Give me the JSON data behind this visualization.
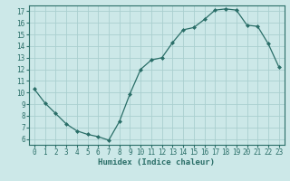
{
  "x": [
    0,
    1,
    2,
    3,
    4,
    5,
    6,
    7,
    8,
    9,
    10,
    11,
    12,
    13,
    14,
    15,
    16,
    17,
    18,
    19,
    20,
    21,
    22,
    23
  ],
  "y": [
    10.3,
    9.1,
    8.2,
    7.3,
    6.7,
    6.4,
    6.2,
    5.9,
    7.5,
    9.9,
    12.0,
    12.8,
    13.0,
    14.3,
    15.4,
    15.6,
    16.3,
    17.1,
    17.2,
    17.1,
    15.8,
    15.7,
    14.2,
    12.2
  ],
  "xlim": [
    -0.5,
    23.5
  ],
  "ylim": [
    5.5,
    17.5
  ],
  "yticks": [
    6,
    7,
    8,
    9,
    10,
    11,
    12,
    13,
    14,
    15,
    16,
    17
  ],
  "xticks": [
    0,
    1,
    2,
    3,
    4,
    5,
    6,
    7,
    8,
    9,
    10,
    11,
    12,
    13,
    14,
    15,
    16,
    17,
    18,
    19,
    20,
    21,
    22,
    23
  ],
  "xlabel": "Humidex (Indice chaleur)",
  "line_color": "#2a6e68",
  "marker": "D",
  "marker_size": 2.0,
  "bg_color": "#cce8e8",
  "grid_color": "#aacfcf",
  "tick_label_fontsize": 5.5,
  "xlabel_fontsize": 6.5,
  "linewidth": 0.9
}
